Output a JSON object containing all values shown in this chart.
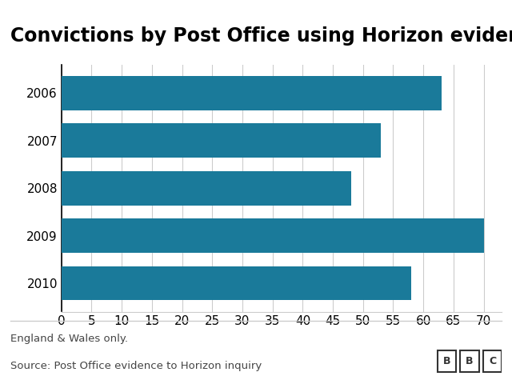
{
  "title": "Convictions by Post Office using Horizon evidence",
  "years": [
    "2006",
    "2007",
    "2008",
    "2009",
    "2010"
  ],
  "values": [
    63,
    53,
    48,
    70,
    58
  ],
  "bar_color": "#1a7a9a",
  "xlim": [
    0,
    73
  ],
  "xticks": [
    0,
    5,
    10,
    15,
    20,
    25,
    30,
    35,
    40,
    45,
    50,
    55,
    60,
    65,
    70
  ],
  "background_color": "#ffffff",
  "title_fontsize": 17,
  "tick_fontsize": 11,
  "note_text": "England & Wales only.",
  "source_text": "Source: Post Office evidence to Horizon inquiry",
  "bbc_text": "BBC",
  "bar_height": 0.72
}
